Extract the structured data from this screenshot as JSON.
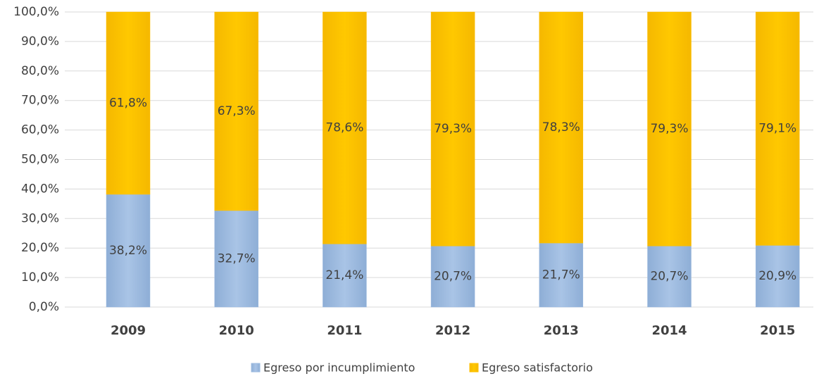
{
  "chart_data": {
    "type": "stacked_bar",
    "categories": [
      "2009",
      "2010",
      "2011",
      "2012",
      "2013",
      "2014",
      "2015"
    ],
    "series": [
      {
        "name": "Egreso por incumplimiento",
        "color": "#9dbbe0",
        "values": [
          38.2,
          32.7,
          21.4,
          20.7,
          21.7,
          20.7,
          20.9
        ],
        "value_labels": [
          "38,2%",
          "32,7%",
          "21,4%",
          "20,7%",
          "21,7%",
          "20,7%",
          "20,9%"
        ]
      },
      {
        "name": "Egreso satisfactorio",
        "color": "#ffc000",
        "values": [
          61.8,
          67.3,
          78.6,
          79.3,
          78.3,
          79.3,
          79.1
        ],
        "value_labels": [
          "61,8%",
          "67,3%",
          "78,6%",
          "79,3%",
          "78,3%",
          "79,3%",
          "79,1%"
        ]
      }
    ],
    "ylim": [
      0,
      100
    ],
    "yticks": [
      {
        "value": 0,
        "label": "0,0%"
      },
      {
        "value": 10,
        "label": "10,0%"
      },
      {
        "value": 20,
        "label": "20,0%"
      },
      {
        "value": 30,
        "label": "30,0%"
      },
      {
        "value": 40,
        "label": "40,0%"
      },
      {
        "value": 50,
        "label": "50,0%"
      },
      {
        "value": 60,
        "label": "60,0%"
      },
      {
        "value": 70,
        "label": "70,0%"
      },
      {
        "value": 80,
        "label": "80,0%"
      },
      {
        "value": 90,
        "label": "90,0%"
      },
      {
        "value": 100,
        "label": "100,0%"
      }
    ],
    "grid": true,
    "legend": "bottom"
  }
}
